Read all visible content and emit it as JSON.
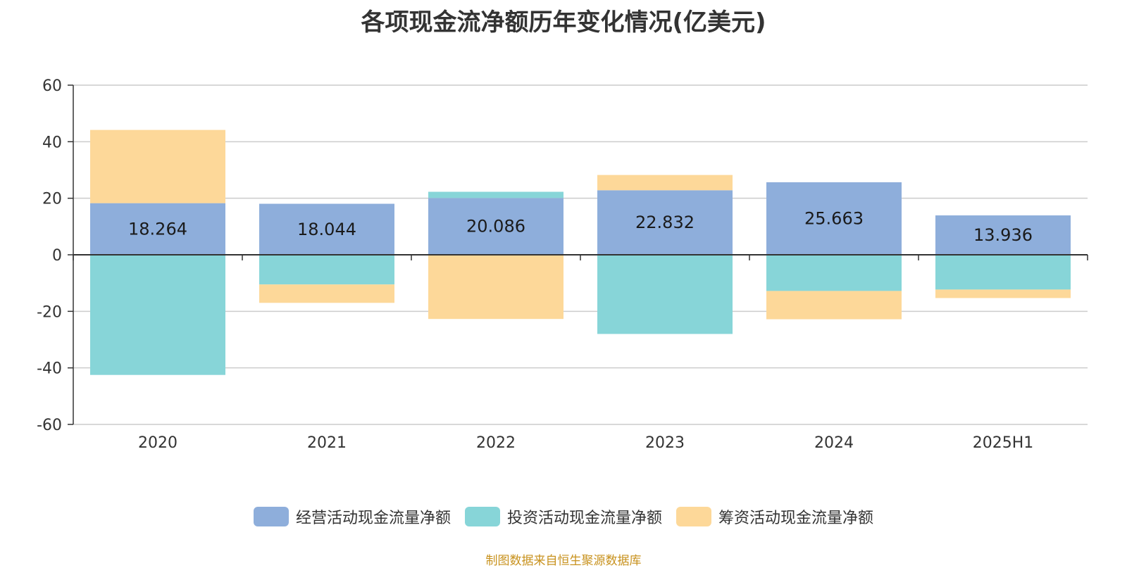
{
  "chart_data": {
    "type": "bar",
    "stacked": true,
    "title": "各项现金流净额历年变化情况(亿美元)",
    "categories": [
      "2020",
      "2021",
      "2022",
      "2023",
      "2024",
      "2025H1"
    ],
    "ylim": [
      -60,
      60
    ],
    "yticks": [
      60,
      40,
      20,
      0,
      -20,
      -40,
      -60
    ],
    "grid": true,
    "legend_position": "bottom",
    "series": [
      {
        "name": "经营活动现金流量净额",
        "color": "#8eaedb",
        "values": [
          18.264,
          18.044,
          20.086,
          22.832,
          25.663,
          13.936
        ],
        "show_labels": true
      },
      {
        "name": "投资活动现金流量净额",
        "color": "#87d5d8",
        "values": [
          -42.5,
          -10.5,
          2.2,
          -28.0,
          -12.8,
          -12.3
        ]
      },
      {
        "name": "筹资活动现金流量净额",
        "color": "#fdd899",
        "values": [
          25.9,
          -6.5,
          -22.7,
          5.4,
          -10.0,
          -3.0
        ]
      }
    ]
  },
  "source_note": "制图数据来自恒生聚源数据库"
}
